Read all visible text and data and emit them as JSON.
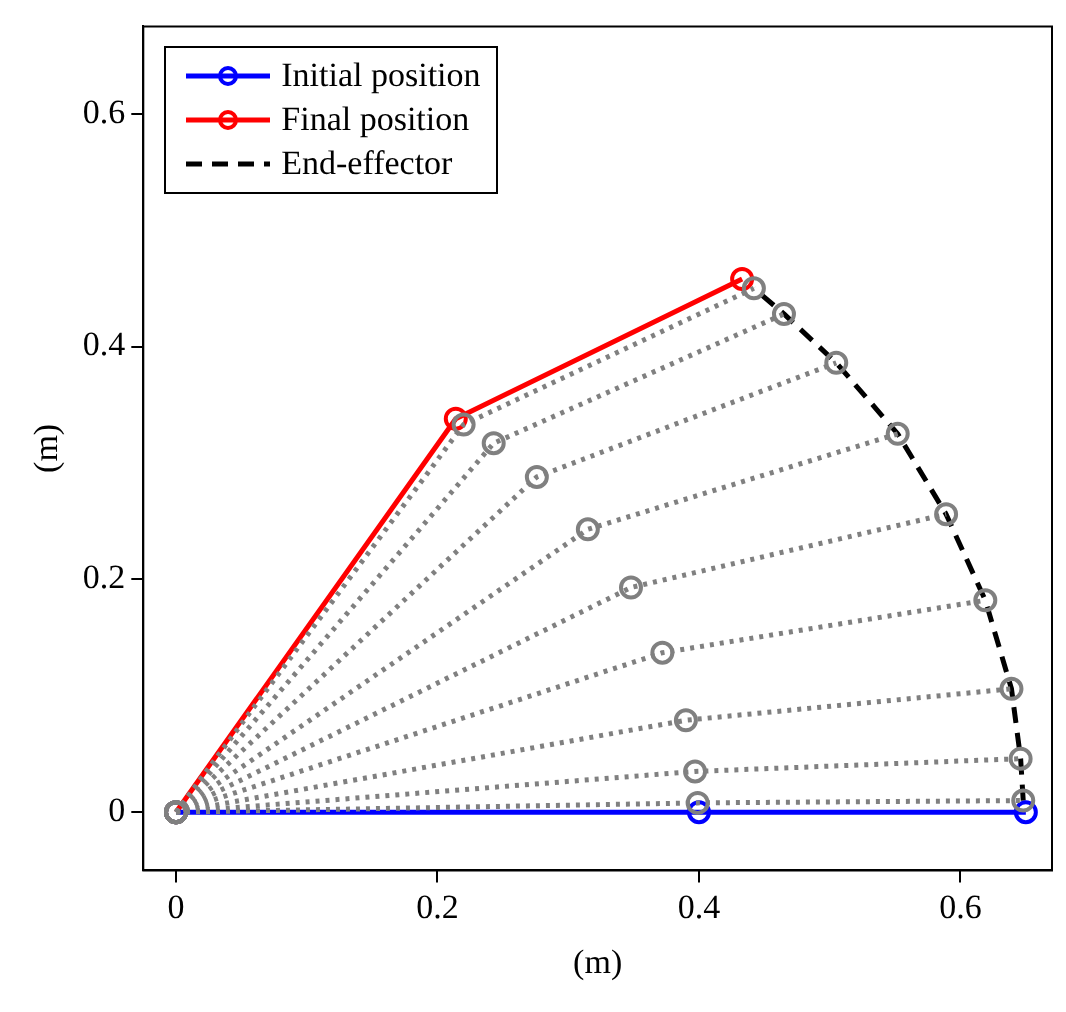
{
  "chart_data": {
    "type": "line",
    "xlabel": "(m)",
    "ylabel": "(m)",
    "xlim": [
      -0.025,
      0.67
    ],
    "ylim": [
      -0.05,
      0.675
    ],
    "xticks": [
      0,
      0.2,
      0.4,
      0.6
    ],
    "yticks": [
      0,
      0.2,
      0.4,
      0.6
    ],
    "grid": false,
    "legend": "top left",
    "series": [
      {
        "color": "#808080",
        "line_style": "dotted",
        "marker": "circle",
        "x": [
          0,
          0.399,
          0.648
        ],
        "values": [
          0,
          0.008,
          0.01
        ]
      },
      {
        "color": "#808080",
        "line_style": "dotted",
        "marker": "circle",
        "x": [
          0,
          0.397,
          0.646
        ],
        "values": [
          0,
          0.035,
          0.046
        ]
      },
      {
        "color": "#808080",
        "line_style": "dotted",
        "marker": "circle",
        "x": [
          0,
          0.39,
          0.639
        ],
        "values": [
          0,
          0.079,
          0.106
        ]
      },
      {
        "color": "#808080",
        "line_style": "dotted",
        "marker": "circle",
        "x": [
          0,
          0.372,
          0.619
        ],
        "values": [
          0,
          0.137,
          0.182
        ]
      },
      {
        "color": "#808080",
        "line_style": "dotted",
        "marker": "circle",
        "x": [
          0,
          0.348,
          0.589
        ],
        "values": [
          0,
          0.193,
          0.256
        ]
      },
      {
        "color": "#808080",
        "line_style": "dotted",
        "marker": "circle",
        "x": [
          0,
          0.315,
          0.552
        ],
        "values": [
          0,
          0.243,
          0.325
        ]
      },
      {
        "color": "#808080",
        "line_style": "dotted",
        "marker": "circle",
        "x": [
          0,
          0.276,
          0.505
        ],
        "values": [
          0,
          0.288,
          0.386
        ]
      },
      {
        "color": "#808080",
        "line_style": "dotted",
        "marker": "circle",
        "x": [
          0,
          0.243,
          0.465
        ],
        "values": [
          0,
          0.317,
          0.428
        ]
      },
      {
        "color": "#808080",
        "line_style": "dotted",
        "marker": "circle",
        "x": [
          0,
          0.22,
          0.442
        ],
        "values": [
          0,
          0.333,
          0.45
        ]
      },
      {
        "name": "Initial position",
        "color": "#0000ff",
        "line_style": "solid",
        "marker": "circle",
        "x": [
          0,
          0.4,
          0.65
        ],
        "values": [
          0,
          0,
          0
        ]
      },
      {
        "name": "Final position",
        "color": "#ff0000",
        "line_style": "solid",
        "marker": "circle",
        "x": [
          0,
          0.214,
          0.433
        ],
        "values": [
          0,
          0.338,
          0.458
        ]
      },
      {
        "name": "End-effector",
        "color": "#000000",
        "line_style": "dashed",
        "marker": "none",
        "x": [
          0.648,
          0.646,
          0.639,
          0.619,
          0.589,
          0.552,
          0.505,
          0.465,
          0.442
        ],
        "values": [
          0.01,
          0.046,
          0.106,
          0.182,
          0.256,
          0.325,
          0.386,
          0.428,
          0.45
        ]
      }
    ]
  }
}
